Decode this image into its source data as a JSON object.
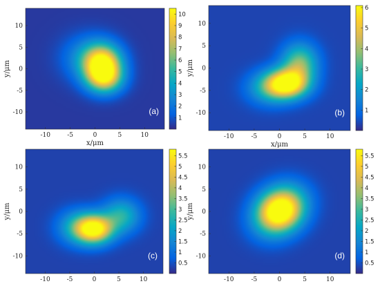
{
  "colors": {
    "colormap": "parula",
    "stops": [
      "#352a87",
      "#0363e1",
      "#1485d4",
      "#06a7c6",
      "#38b99e",
      "#92bf73",
      "#d9ba56",
      "#fcce2e",
      "#f9fb0e"
    ],
    "panel_label_color": "#ffffff"
  },
  "chart_data": [
    {
      "type": "heatmap",
      "panel_label": "(a)",
      "xlabel": "x/μm",
      "ylabel": "y/μm",
      "xlim": [
        -14,
        14
      ],
      "ylim": [
        -14,
        14
      ],
      "x_ticks": [
        -10,
        -5,
        0,
        5,
        10
      ],
      "y_ticks": [
        10,
        5,
        0,
        -5,
        -10
      ],
      "colorbar": {
        "min": 0,
        "max": 10.5,
        "ticks": [
          1,
          2,
          3,
          4,
          5,
          6,
          7,
          8,
          9,
          10
        ]
      },
      "peaks": [
        {
          "x": 1.5,
          "y": 1.0,
          "amplitude": 10.3,
          "sigma_x": 2.6,
          "sigma_y": 3.0
        },
        {
          "x": 2.0,
          "y": -2.5,
          "amplitude": 5.5,
          "sigma_x": 2.5,
          "sigma_y": 2.3
        },
        {
          "x": -1.5,
          "y": 2.5,
          "amplitude": 2.5,
          "sigma_x": 3.5,
          "sigma_y": 3.5
        }
      ],
      "background": 0.35
    },
    {
      "type": "heatmap",
      "panel_label": "(b)",
      "xlabel": "x/μm",
      "ylabel": "y/μm",
      "xlim": [
        -14,
        14
      ],
      "ylim": [
        -14,
        14
      ],
      "x_ticks": [
        -10,
        -5,
        0,
        5,
        10
      ],
      "y_ticks": [
        10,
        5,
        0,
        -5,
        -10
      ],
      "colorbar": {
        "min": 0,
        "max": 6.1,
        "ticks": [
          1,
          2,
          3,
          4,
          5,
          6
        ]
      },
      "peaks": [
        {
          "x": 1.5,
          "y": -3.5,
          "amplitude": 6.0,
          "sigma_x": 2.8,
          "sigma_y": 2.2
        },
        {
          "x": 4.0,
          "y": 1.0,
          "amplitude": 3.3,
          "sigma_x": 2.4,
          "sigma_y": 3.0
        },
        {
          "x": -2.0,
          "y": -4.5,
          "amplitude": 2.0,
          "sigma_x": 3.0,
          "sigma_y": 2.5
        }
      ],
      "background": 0.35
    },
    {
      "type": "heatmap",
      "panel_label": "(c)",
      "xlabel": "",
      "ylabel": "y/μm",
      "xlim": [
        -14,
        14
      ],
      "ylim": [
        -14,
        14
      ],
      "x_ticks": [
        -10,
        -5,
        0,
        5,
        10
      ],
      "y_ticks": [
        10,
        5,
        0,
        -5,
        -10
      ],
      "colorbar": {
        "min": 0,
        "max": 5.8,
        "ticks": [
          0.5,
          1,
          1.5,
          2,
          2.5,
          3,
          3.5,
          4,
          4.5,
          5,
          5.5
        ]
      },
      "peaks": [
        {
          "x": 0.0,
          "y": -4.0,
          "amplitude": 5.7,
          "sigma_x": 2.6,
          "sigma_y": 2.2
        },
        {
          "x": 5.5,
          "y": -1.0,
          "amplitude": 2.3,
          "sigma_x": 2.6,
          "sigma_y": 2.6
        },
        {
          "x": -3.5,
          "y": -3.5,
          "amplitude": 1.8,
          "sigma_x": 2.8,
          "sigma_y": 2.6
        }
      ],
      "background": 0.3
    },
    {
      "type": "heatmap",
      "panel_label": "(d)",
      "xlabel": "",
      "ylabel": "y/μm",
      "xlim": [
        -14,
        14
      ],
      "ylim": [
        -14,
        14
      ],
      "x_ticks": [
        -10,
        -5,
        0,
        5,
        10
      ],
      "y_ticks": [
        10,
        5,
        0,
        -5,
        -10
      ],
      "colorbar": {
        "min": 0,
        "max": 5.8,
        "ticks": [
          0.5,
          1,
          1.5,
          2,
          2.5,
          3,
          3.5,
          4,
          4.5,
          5,
          5.5
        ]
      },
      "peaks": [
        {
          "x": 0.0,
          "y": 0.0,
          "amplitude": 5.7,
          "sigma_x": 3.0,
          "sigma_y": 3.0
        },
        {
          "x": 2.0,
          "y": 3.0,
          "amplitude": 1.6,
          "sigma_x": 3.0,
          "sigma_y": 3.0
        },
        {
          "x": -2.0,
          "y": -3.0,
          "amplitude": 1.2,
          "sigma_x": 3.0,
          "sigma_y": 3.0
        }
      ],
      "background": 0.3
    }
  ]
}
